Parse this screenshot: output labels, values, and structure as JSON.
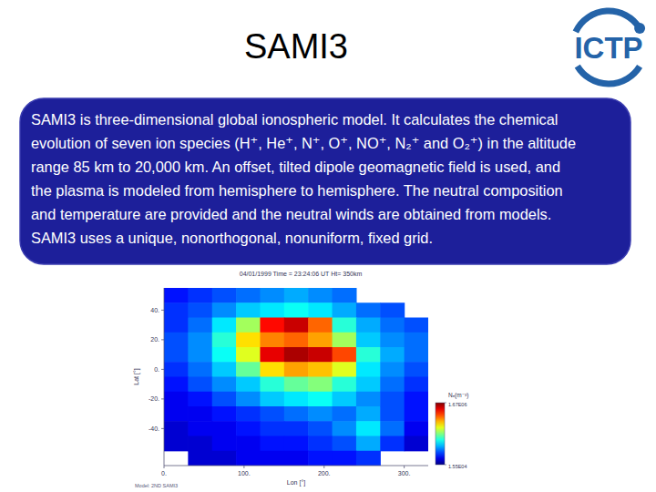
{
  "slide": {
    "title": "SAMI3",
    "logo": "ICTP",
    "body": [
      "SAMI3 is three-dimensional global ionospheric model. It calculates the chemical",
      "evolution of seven ion species (H⁺, He⁺, N⁺, O⁺, NO⁺, N₂⁺ and O₂⁺) in the altitude",
      "range 85 km to 20,000 km. An offset, tilted dipole geomagnetic field is used, and",
      "the plasma is modeled from hemisphere to hemisphere. The neutral composition",
      "and temperature are provided and the neutral winds are obtained from models.",
      "SAMI3 uses a unique, nonorthogonal, nonuniform, fixed grid."
    ]
  },
  "chart_data": {
    "type": "heatmap",
    "title": "04/01/1999 Time = 23:24:06 UT Ht= 350km",
    "x_label": "Lon [°]",
    "y_label": "Lat [°]",
    "annotation": "Model: 2ND SAMI3",
    "xlim": [
      0,
      330
    ],
    "ylim": [
      -65,
      55
    ],
    "xticks": [
      {
        "value": 0,
        "label": "0."
      },
      {
        "value": 100,
        "label": "100."
      },
      {
        "value": 200,
        "label": "200."
      },
      {
        "value": 300,
        "label": "300."
      }
    ],
    "yticks": [
      {
        "value": 40,
        "label": "40."
      },
      {
        "value": 20,
        "label": "20."
      },
      {
        "value": 0,
        "label": "0."
      },
      {
        "value": -20,
        "label": "-20."
      },
      {
        "value": -40,
        "label": "-40."
      }
    ],
    "x": [
      15,
      45,
      75,
      105,
      135,
      165,
      195,
      225,
      255,
      285,
      315
    ],
    "y": [
      50,
      40,
      30,
      20,
      10,
      0,
      -10,
      -20,
      -30,
      -40,
      -50,
      -60
    ],
    "cells": [
      [
        250000,
        300000,
        350000,
        400000,
        450000,
        500000,
        450000,
        400000,
        null,
        null,
        null
      ],
      [
        300000,
        350000,
        450000,
        550000,
        600000,
        650000,
        600000,
        500000,
        400000,
        350000,
        null
      ],
      [
        300000,
        400000,
        600000,
        900000,
        1450000,
        1550000,
        1300000,
        700000,
        500000,
        400000,
        350000
      ],
      [
        350000,
        450000,
        700000,
        1100000,
        1250000,
        1300000,
        1200000,
        900000,
        550000,
        450000,
        400000
      ],
      [
        350000,
        450000,
        650000,
        1000000,
        1500000,
        1600000,
        1550000,
        1350000,
        700000,
        500000,
        400000
      ],
      [
        300000,
        400000,
        550000,
        800000,
        1100000,
        1200000,
        1150000,
        1000000,
        600000,
        450000,
        350000
      ],
      [
        250000,
        350000,
        450000,
        550000,
        700000,
        800000,
        850000,
        700000,
        550000,
        400000,
        300000
      ],
      [
        200000,
        250000,
        350000,
        450000,
        550000,
        600000,
        650000,
        550000,
        450000,
        350000,
        250000
      ],
      [
        200000,
        200000,
        250000,
        300000,
        350000,
        400000,
        450000,
        400000,
        500000,
        350000,
        250000
      ],
      [
        150000,
        200000,
        200000,
        250000,
        300000,
        300000,
        350000,
        450000,
        600000,
        400000,
        200000
      ],
      [
        150000,
        150000,
        200000,
        200000,
        250000,
        250000,
        300000,
        350000,
        500000,
        300000,
        150000
      ],
      [
        null,
        150000,
        150000,
        200000,
        200000,
        200000,
        250000,
        250000,
        300000,
        null,
        null
      ]
    ],
    "colorbar": {
      "label": "Nₑ(m⁻³)",
      "range": [
        15500,
        1670000
      ],
      "ticks": [
        {
          "value": 1670000,
          "label": "1.67E06"
        },
        {
          "value": 15500,
          "label": "1.55E04"
        }
      ]
    }
  }
}
